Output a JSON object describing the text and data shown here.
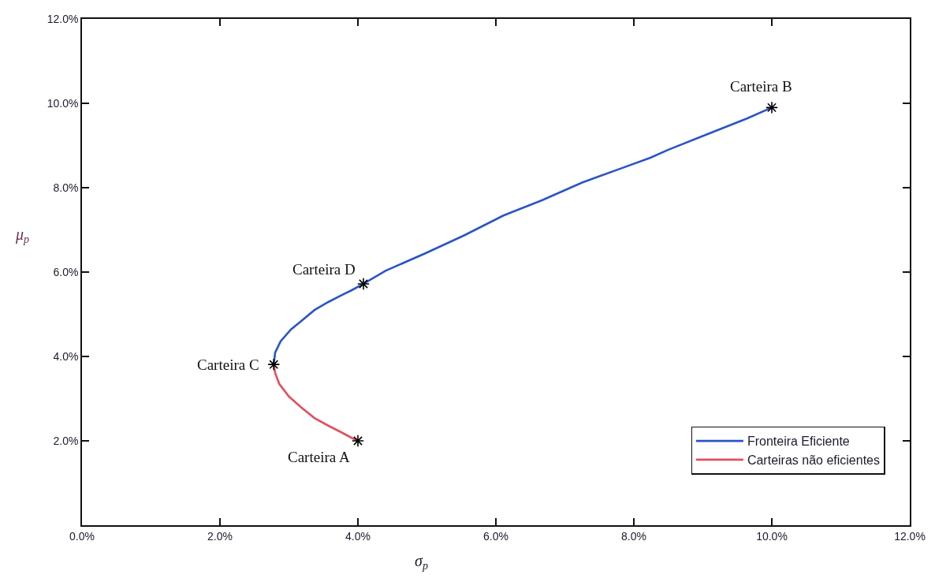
{
  "chart_data": {
    "type": "line",
    "xlabel": "σ$_{p}$",
    "ylabel": "μ$_{p}$",
    "xlim": [
      0,
      12
    ],
    "xticks": [
      {
        "value": 0,
        "label": "0.0%"
      },
      {
        "value": 2,
        "label": "2.0%"
      },
      {
        "value": 4,
        "label": "4.0%"
      },
      {
        "value": 6,
        "label": "6.0%"
      },
      {
        "value": 8,
        "label": "8.0%"
      },
      {
        "value": 10,
        "label": "10.0%"
      },
      {
        "value": 12,
        "label": "12.0%"
      }
    ],
    "ylim": [
      0,
      12
    ],
    "yticks": [
      {
        "value": 2,
        "label": "2.0%"
      },
      {
        "value": 4,
        "label": "4.0%"
      },
      {
        "value": 6,
        "label": "6.0%"
      },
      {
        "value": 8,
        "label": "8.0%"
      },
      {
        "value": 10,
        "label": "10.0%"
      },
      {
        "value": 12,
        "label": "12.0%"
      }
    ],
    "legend": "bottom right",
    "line_style": "solid",
    "series": [
      {
        "name": "Fronteira Eficiente",
        "color": "#2b55c4",
        "x": [
          2.78,
          2.8,
          2.88,
          3.03,
          3.18,
          3.37,
          3.57,
          3.75,
          3.91,
          4.08,
          4.4,
          4.97,
          5.54,
          6.11,
          6.68,
          7.25,
          7.82,
          8.24,
          8.5,
          9.07,
          9.64,
          10.0
        ],
        "values": [
          3.81,
          4.09,
          4.36,
          4.64,
          4.84,
          5.1,
          5.29,
          5.44,
          5.57,
          5.72,
          6.03,
          6.44,
          6.87,
          7.34,
          7.71,
          8.12,
          8.46,
          8.71,
          8.9,
          9.27,
          9.64,
          9.9
        ]
      },
      {
        "name": "Carteiras não eficientes",
        "color": "#e0505e",
        "x": [
          2.78,
          2.8,
          2.86,
          3.0,
          3.18,
          3.37,
          3.57,
          3.75,
          3.91,
          4.0
        ],
        "values": [
          3.81,
          3.61,
          3.35,
          3.05,
          2.79,
          2.54,
          2.36,
          2.21,
          2.07,
          2.0
        ]
      },
      {
        "type": "scatter",
        "marker": "cross",
        "color": "#000000",
        "x": [
          4.0,
          10.0,
          2.78,
          4.08
        ],
        "values": [
          2.0,
          9.9,
          3.81,
          5.72
        ]
      }
    ],
    "annotations": [
      {
        "text": "Carteira A",
        "x": 4.0,
        "y": 2.0
      },
      {
        "text": "Carteira B",
        "x": 10.0,
        "y": 9.9
      },
      {
        "text": "Carteira C",
        "x": 2.78,
        "y": 3.81
      },
      {
        "text": "Carteira D",
        "x": 4.08,
        "y": 5.72
      }
    ]
  }
}
